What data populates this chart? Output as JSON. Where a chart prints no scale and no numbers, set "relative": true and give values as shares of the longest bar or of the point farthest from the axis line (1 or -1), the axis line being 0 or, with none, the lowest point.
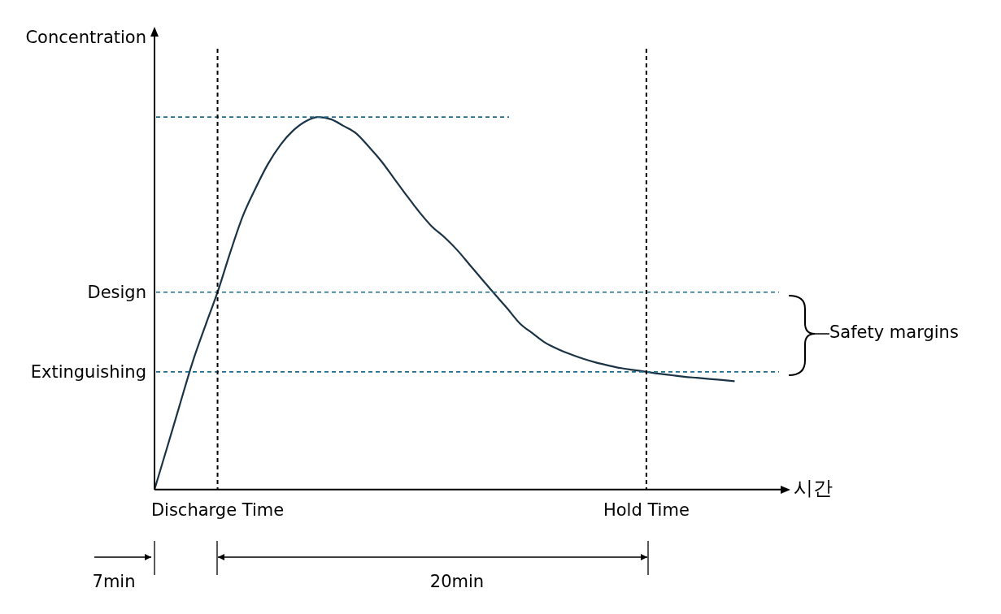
{
  "chart_data": {
    "type": "line",
    "relative": true,
    "ylabel": "Concentration",
    "xlabel": "시간",
    "categories": [
      null,
      null,
      null,
      null,
      null,
      "Discharge Time",
      null,
      null,
      null,
      null,
      null,
      null,
      null,
      null,
      null,
      null,
      null,
      null,
      null,
      null,
      null,
      null,
      null,
      null,
      null,
      null,
      null,
      null,
      null,
      null,
      null,
      null,
      null,
      null,
      null,
      null,
      null,
      null,
      null,
      "Hold Time",
      null,
      null,
      null,
      null,
      null,
      null,
      null,
      null,
      null,
      null
    ],
    "series": [
      {
        "color": "#1b3445",
        "values": [
          0,
          0.113,
          0.227,
          0.34,
          0.437,
          0.53,
          0.636,
          0.734,
          0.808,
          0.874,
          0.926,
          0.964,
          0.989,
          1,
          0.994,
          0.976,
          0.956,
          0.92,
          0.881,
          0.835,
          0.789,
          0.745,
          0.706,
          0.677,
          0.643,
          0.603,
          0.563,
          0.524,
          0.485,
          0.445,
          0.419,
          0.394,
          0.377,
          0.363,
          0.351,
          0.341,
          0.333,
          0.326,
          0.321,
          0.316,
          0.311,
          0.307,
          0.303,
          0.3,
          0.297,
          0.294,
          0.291,
          null,
          null,
          null
        ]
      }
    ],
    "marker": "none",
    "line_style": "solid",
    "legend": false,
    "grid": false,
    "ref_lines": [
      {
        "axis": "y",
        "value": 1,
        "color": "#1f6a8a",
        "line_style": "dashed"
      },
      {
        "axis": "y",
        "value": 0.53,
        "label": "Design",
        "color": "#1f6a8a",
        "line_style": "dashed"
      },
      {
        "axis": "y",
        "value": 0.316,
        "label": "Extinguishing",
        "color": "#1f6a8a",
        "line_style": "dashed"
      },
      {
        "axis": "x",
        "value": "Discharge Time",
        "color": "#000000",
        "line_style": "dashed"
      },
      {
        "axis": "x",
        "value": "Hold Time",
        "color": "#000000",
        "line_style": "dashed"
      }
    ],
    "annotations": [
      "Safety margins",
      "7min",
      "20min"
    ]
  }
}
